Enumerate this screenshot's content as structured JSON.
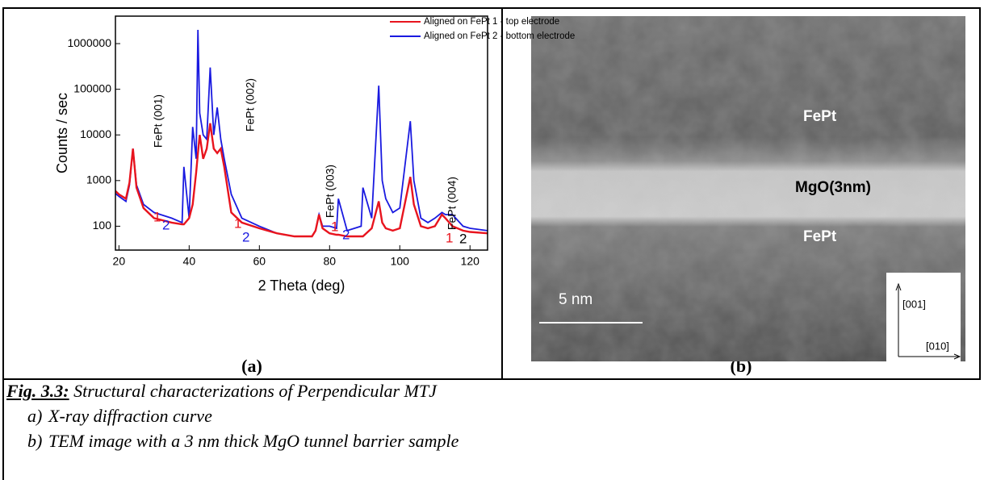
{
  "chart_data": {
    "type": "line",
    "x_label": "2 Theta (deg)",
    "y_label": "Counts / sec",
    "xlim": [
      19,
      125
    ],
    "xticks": [
      20,
      40,
      60,
      80,
      100,
      120
    ],
    "ylim": [
      30,
      4000000
    ],
    "yticks": [
      100,
      1000,
      10000,
      100000,
      1000000
    ],
    "log_y": true,
    "legend": "top-right",
    "x": [
      18,
      20,
      22,
      23,
      24,
      25,
      27,
      30,
      35,
      38,
      38.5,
      40,
      41,
      42,
      42.5,
      43,
      44,
      45,
      46,
      47,
      48,
      49,
      50,
      52,
      55,
      60,
      65,
      70,
      75,
      76,
      77,
      78,
      80,
      82,
      82.5,
      85,
      89,
      89.5,
      92,
      94,
      95,
      96,
      98,
      100,
      103,
      104,
      106,
      108,
      110,
      112,
      113,
      115,
      118,
      120,
      125
    ],
    "series": [
      {
        "name": "Aligned on FePt 1 - top electrode",
        "color": "#e8141e",
        "values": [
          700,
          500,
          400,
          900,
          5000,
          700,
          250,
          150,
          120,
          110,
          110,
          150,
          300,
          1500,
          4000,
          10000,
          3000,
          5000,
          18000,
          5000,
          4000,
          5000,
          2000,
          200,
          120,
          90,
          70,
          60,
          60,
          80,
          180,
          90,
          70,
          65,
          65,
          60,
          60,
          60,
          90,
          350,
          120,
          90,
          80,
          90,
          1200,
          300,
          100,
          90,
          100,
          180,
          150,
          100,
          80,
          75,
          70
        ]
      },
      {
        "name": "Aligned on FePt 2 - bottom electrode",
        "color": "#1a1ae0",
        "values": [
          600,
          450,
          350,
          800,
          5000,
          800,
          300,
          200,
          150,
          120,
          2000,
          150,
          15000,
          3000,
          2000000,
          30000,
          10000,
          8000,
          300000,
          10000,
          40000,
          8000,
          3000,
          500,
          150,
          100,
          70,
          60,
          60,
          80,
          180,
          100,
          100,
          90,
          400,
          80,
          100,
          700,
          150,
          120000,
          1000,
          400,
          200,
          250,
          20000,
          1000,
          150,
          120,
          150,
          200,
          180,
          180,
          100,
          90,
          80
        ]
      }
    ],
    "annotations": [
      "FePt (001)",
      "FePt (002)",
      "FePt (003)",
      "FePt (004)"
    ],
    "peak_labels": [
      {
        "text": "1",
        "color": "#e8141e"
      },
      {
        "text": "2",
        "color": "#1a1ae0"
      },
      {
        "text": "1",
        "color": "#e8141e"
      },
      {
        "text": "2",
        "color": "#1a1ae0"
      },
      {
        "text": "1",
        "color": "#e8141e"
      },
      {
        "text": "2",
        "color": "#1a1ae0"
      },
      {
        "text": "1",
        "color": "#e8141e"
      },
      {
        "text": "2",
        "color": "#000000"
      }
    ]
  },
  "panel_a": {
    "label": "(a)"
  },
  "panel_b": {
    "label": "(b)",
    "layer_top": "FePt",
    "barrier": "MgO(3nm)",
    "layer_bottom": "FePt",
    "scale_bar": "5 nm",
    "axis_vertical": "[001]",
    "axis_horizontal": "[010]"
  },
  "caption": {
    "figure": "Fig. 3.3:",
    "title": "Structural characterizations of Perpendicular MTJ",
    "items": [
      {
        "marker": "a)",
        "text": "X-ray diffraction curve"
      },
      {
        "marker": "b)",
        "text": "TEM image with a 3 nm thick MgO tunnel barrier sample"
      }
    ]
  }
}
